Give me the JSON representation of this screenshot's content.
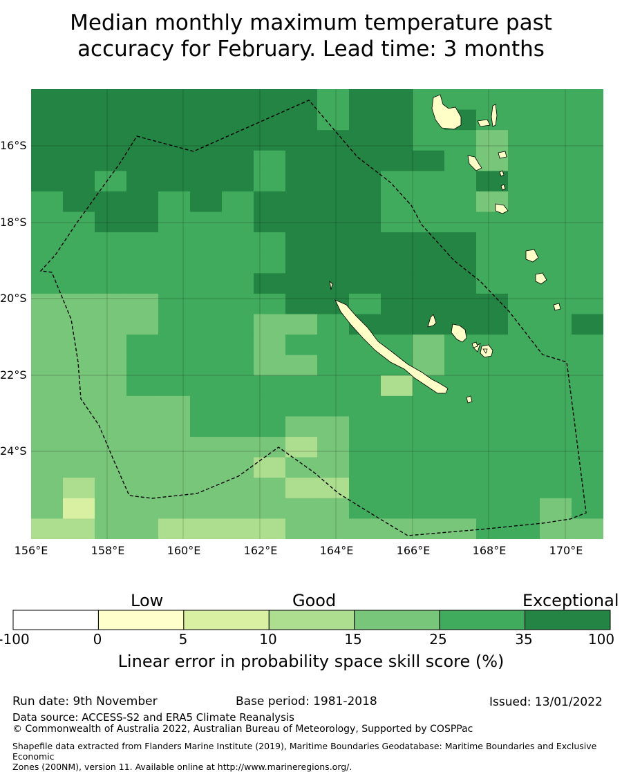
{
  "title": {
    "line1": "Median monthly maximum temperature past",
    "line2": "accuracy for February. Lead time: 3 months"
  },
  "map": {
    "lat_labels": [
      "16°S",
      "18°S",
      "20°S",
      "22°S",
      "24°S"
    ],
    "lon_labels": [
      "156°E",
      "158°E",
      "160°E",
      "162°E",
      "164°E",
      "166°E",
      "168°E",
      "170°E"
    ]
  },
  "colorbar": {
    "categories": [
      "Low",
      "Good",
      "Exceptional"
    ],
    "ticks": [
      "-100",
      "0",
      "5",
      "10",
      "15",
      "25",
      "35",
      "100"
    ],
    "colors": [
      "#ffffff",
      "#ffffcc",
      "#d9f0a3",
      "#addd8e",
      "#78c679",
      "#41ab5d",
      "#238443"
    ],
    "title": "Linear error in probability space skill score (%)"
  },
  "footer": {
    "run_date": "Run date: 9th November",
    "base_period": "Base period: 1981-2018",
    "issued": "Issued: 13/01/2022",
    "data_source": "Data source: ACCESS-S2 and ERA5 Climate Reanalysis",
    "copyright": "© Commonwealth of Australia 2022, Australian Bureau of Meteorology, Supported by COSPPac",
    "shapefile_line1": "Shapefile data extracted from Flanders Marine Institute (2019), Maritime Boundaries Geodatabase: Maritime Boundaries and Exclusive Economic",
    "shapefile_line2": "Zones (200NM), version 11. Available online at http://www.marineregions.org/."
  }
}
